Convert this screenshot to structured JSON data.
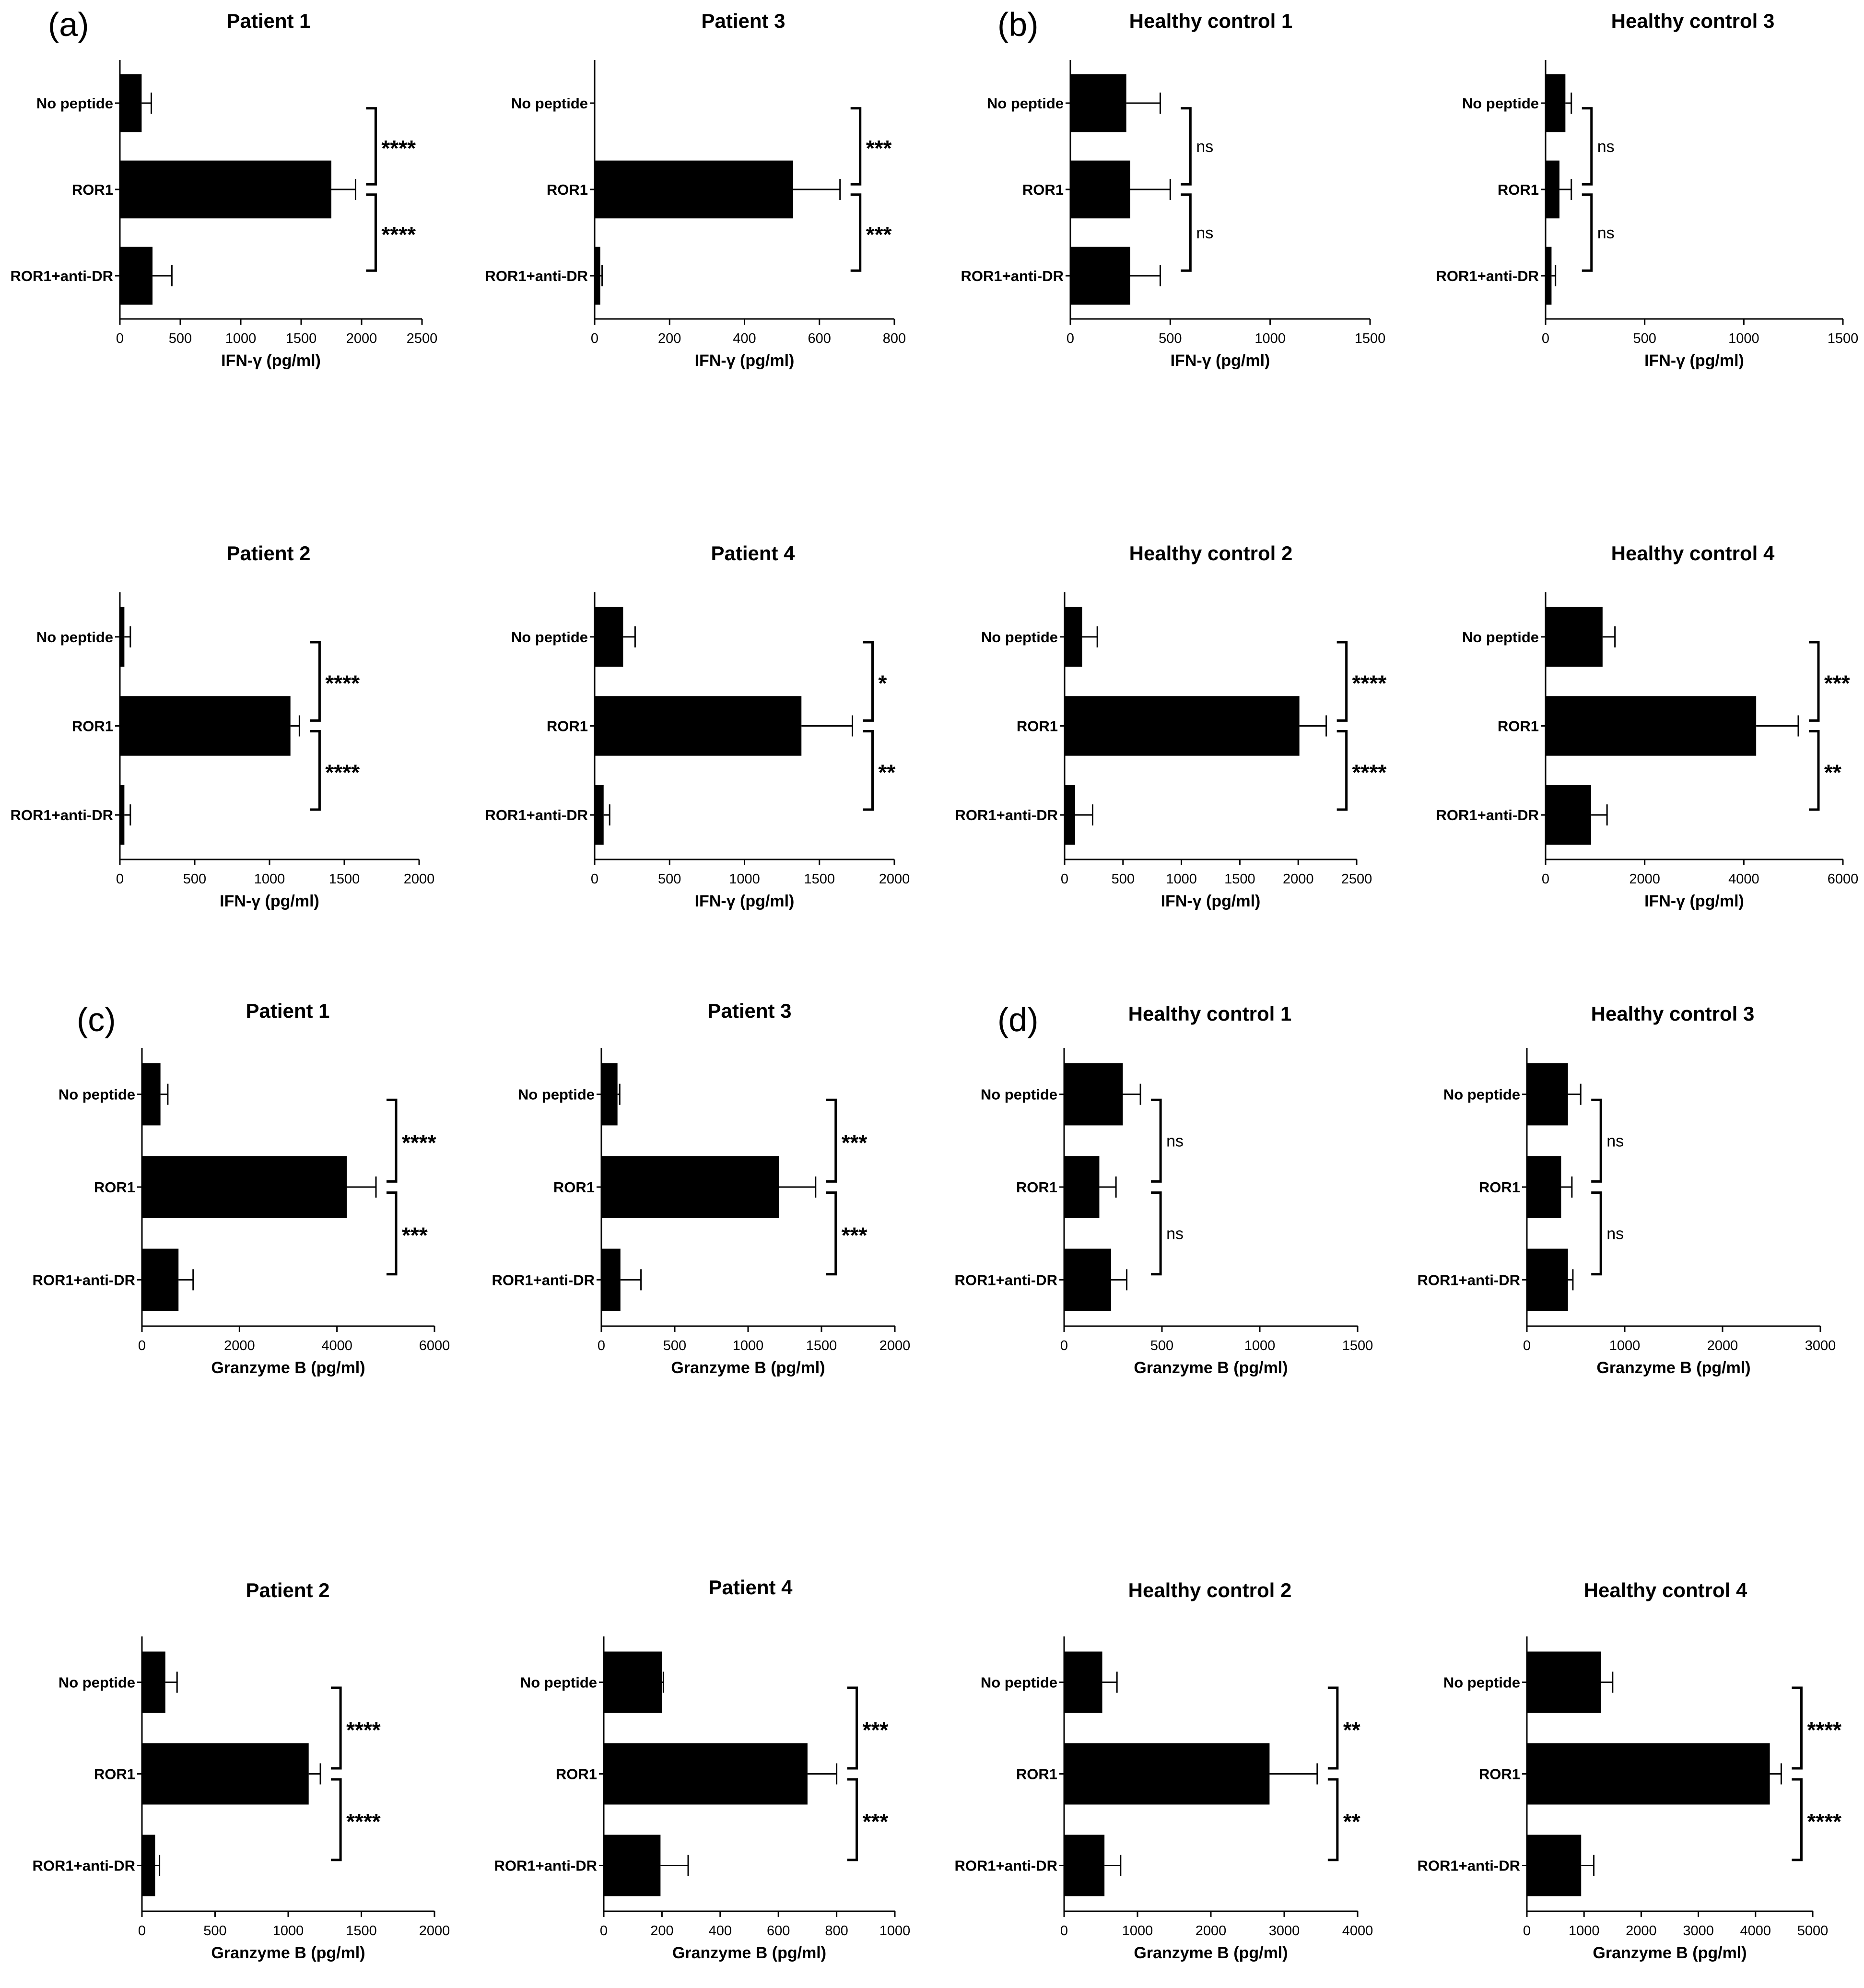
{
  "panel_letters": [
    "(a)",
    "(b)",
    "(c)",
    "(d)"
  ],
  "chart_data": [
    {
      "type": "bar",
      "orientation": "horizontal",
      "title": "Patient 1",
      "xlabel": "IFN-γ (pg/ml)",
      "categories": [
        "No peptide",
        "ROR1",
        "ROR1+anti-DR"
      ],
      "values": [
        180,
        1750,
        270
      ],
      "errors": [
        80,
        200,
        160
      ],
      "xlim": [
        0,
        2500
      ],
      "xticks": [
        0,
        500,
        1000,
        1500,
        2000,
        2500
      ],
      "significance": [
        "****",
        "****"
      ]
    },
    {
      "type": "bar",
      "orientation": "horizontal",
      "title": "Patient 3",
      "xlabel": "IFN-γ (pg/ml)",
      "categories": [
        "No peptide",
        "ROR1",
        "ROR1+anti-DR"
      ],
      "values": [
        0,
        530,
        15
      ],
      "errors": [
        0,
        125,
        5
      ],
      "xlim": [
        0,
        800
      ],
      "xticks": [
        0,
        200,
        400,
        600,
        800
      ],
      "significance": [
        "***",
        "***"
      ]
    },
    {
      "type": "bar",
      "orientation": "horizontal",
      "title": "Healthy control 1",
      "xlabel": "IFN-γ (pg/ml)",
      "categories": [
        "No peptide",
        "ROR1",
        "ROR1+anti-DR"
      ],
      "values": [
        280,
        300,
        300
      ],
      "errors": [
        170,
        200,
        150
      ],
      "xlim": [
        0,
        1500
      ],
      "xticks": [
        0,
        500,
        1000,
        1500
      ],
      "significance": [
        "ns",
        "ns"
      ]
    },
    {
      "type": "bar",
      "orientation": "horizontal",
      "title": "Healthy control 3",
      "xlabel": "IFN-γ (pg/ml)",
      "categories": [
        "No peptide",
        "ROR1",
        "ROR1+anti-DR"
      ],
      "values": [
        100,
        70,
        30
      ],
      "errors": [
        30,
        60,
        20
      ],
      "xlim": [
        0,
        1500
      ],
      "xticks": [
        0,
        500,
        1000,
        1500
      ],
      "significance": [
        "ns",
        "ns"
      ]
    },
    {
      "type": "bar",
      "orientation": "horizontal",
      "title": "Patient 2",
      "xlabel": "IFN-γ (pg/ml)",
      "categories": [
        "No peptide",
        "ROR1",
        "ROR1+anti-DR"
      ],
      "values": [
        30,
        1140,
        30
      ],
      "errors": [
        40,
        60,
        40
      ],
      "xlim": [
        0,
        2000
      ],
      "xticks": [
        0,
        500,
        1000,
        1500,
        2000
      ],
      "significance": [
        "****",
        "****"
      ]
    },
    {
      "type": "bar",
      "orientation": "horizontal",
      "title": "Patient 4",
      "xlabel": "IFN-γ (pg/ml)",
      "categories": [
        "No peptide",
        "ROR1",
        "ROR1+anti-DR"
      ],
      "values": [
        190,
        1380,
        60
      ],
      "errors": [
        80,
        340,
        40
      ],
      "xlim": [
        0,
        2000
      ],
      "xticks": [
        0,
        500,
        1000,
        1500,
        2000
      ],
      "significance": [
        "*",
        "**"
      ]
    },
    {
      "type": "bar",
      "orientation": "horizontal",
      "title": "Healthy control 2",
      "xlabel": "IFN-γ (pg/ml)",
      "categories": [
        "No peptide",
        "ROR1",
        "ROR1+anti-DR"
      ],
      "values": [
        150,
        2010,
        90
      ],
      "errors": [
        130,
        230,
        150
      ],
      "xlim": [
        0,
        2500
      ],
      "xticks": [
        0,
        500,
        1000,
        1500,
        2000,
        2500
      ],
      "significance": [
        "****",
        "****"
      ]
    },
    {
      "type": "bar",
      "orientation": "horizontal",
      "title": "Healthy control 4",
      "xlabel": "IFN-γ (pg/ml)",
      "categories": [
        "No peptide",
        "ROR1",
        "ROR1+anti-DR"
      ],
      "values": [
        1150,
        4250,
        920
      ],
      "errors": [
        250,
        850,
        320
      ],
      "xlim": [
        0,
        6000
      ],
      "xticks": [
        0,
        2000,
        4000,
        6000
      ],
      "significance": [
        "***",
        "**"
      ]
    },
    {
      "type": "bar",
      "orientation": "horizontal",
      "title": "Patient 1",
      "xlabel": "Granzyme B (pg/ml)",
      "categories": [
        "No peptide",
        "ROR1",
        "ROR1+anti-DR"
      ],
      "values": [
        380,
        4200,
        750
      ],
      "errors": [
        150,
        600,
        300
      ],
      "xlim": [
        0,
        6000
      ],
      "xticks": [
        0,
        2000,
        4000,
        6000
      ],
      "significance": [
        "****",
        "***"
      ]
    },
    {
      "type": "bar",
      "orientation": "horizontal",
      "title": "Patient 3",
      "xlabel": "Granzyme B (pg/ml)",
      "categories": [
        "No peptide",
        "ROR1",
        "ROR1+anti-DR"
      ],
      "values": [
        110,
        1210,
        130
      ],
      "errors": [
        15,
        250,
        140
      ],
      "xlim": [
        0,
        2000
      ],
      "xticks": [
        0,
        500,
        1000,
        1500,
        2000
      ],
      "significance": [
        "***",
        "***"
      ]
    },
    {
      "type": "bar",
      "orientation": "horizontal",
      "title": "Healthy control 1",
      "xlabel": "Granzyme B (pg/ml)",
      "categories": [
        "No peptide",
        "ROR1",
        "ROR1+anti-DR"
      ],
      "values": [
        300,
        180,
        240
      ],
      "errors": [
        90,
        85,
        80
      ],
      "xlim": [
        0,
        1500
      ],
      "xticks": [
        0,
        500,
        1000,
        1500
      ],
      "significance": [
        "ns",
        "ns"
      ]
    },
    {
      "type": "bar",
      "orientation": "horizontal",
      "title": "Healthy control 3",
      "xlabel": "Granzyme B (pg/ml)",
      "categories": [
        "No peptide",
        "ROR1",
        "ROR1+anti-DR"
      ],
      "values": [
        420,
        350,
        420
      ],
      "errors": [
        130,
        110,
        50
      ],
      "xlim": [
        0,
        3000
      ],
      "xticks": [
        0,
        1000,
        2000,
        3000
      ],
      "significance": [
        "ns",
        "ns"
      ]
    },
    {
      "type": "bar",
      "orientation": "horizontal",
      "title": "Patient 2",
      "xlabel": "Granzyme B (pg/ml)",
      "categories": [
        "No peptide",
        "ROR1",
        "ROR1+anti-DR"
      ],
      "values": [
        160,
        1140,
        90
      ],
      "errors": [
        80,
        80,
        30
      ],
      "xlim": [
        0,
        2000
      ],
      "xticks": [
        0,
        500,
        1000,
        1500,
        2000
      ],
      "significance": [
        "****",
        "****"
      ]
    },
    {
      "type": "bar",
      "orientation": "horizontal",
      "title": "Patient 4",
      "xlabel": "Granzyme B (pg/ml)",
      "categories": [
        "No peptide",
        "ROR1",
        "ROR1+anti-DR"
      ],
      "values": [
        200,
        700,
        195
      ],
      "errors": [
        5,
        100,
        95
      ],
      "xlim": [
        0,
        1000
      ],
      "xticks": [
        0,
        200,
        400,
        600,
        800,
        1000
      ],
      "significance": [
        "***",
        "***"
      ]
    },
    {
      "type": "bar",
      "orientation": "horizontal",
      "title": "Healthy control 2",
      "xlabel": "Granzyme B (pg/ml)",
      "categories": [
        "No peptide",
        "ROR1",
        "ROR1+anti-DR"
      ],
      "values": [
        520,
        2800,
        550
      ],
      "errors": [
        200,
        650,
        220
      ],
      "xlim": [
        0,
        4000
      ],
      "xticks": [
        0,
        1000,
        2000,
        3000,
        4000
      ],
      "significance": [
        "**",
        "**"
      ]
    },
    {
      "type": "bar",
      "orientation": "horizontal",
      "title": "Healthy control 4",
      "xlabel": "Granzyme B (pg/ml)",
      "categories": [
        "No peptide",
        "ROR1",
        "ROR1+anti-DR"
      ],
      "values": [
        1300,
        4250,
        950
      ],
      "errors": [
        200,
        200,
        220
      ],
      "xlim": [
        0,
        5000
      ],
      "xticks": [
        0,
        1000,
        2000,
        3000,
        4000,
        5000
      ],
      "significance": [
        "****",
        "****"
      ]
    }
  ]
}
